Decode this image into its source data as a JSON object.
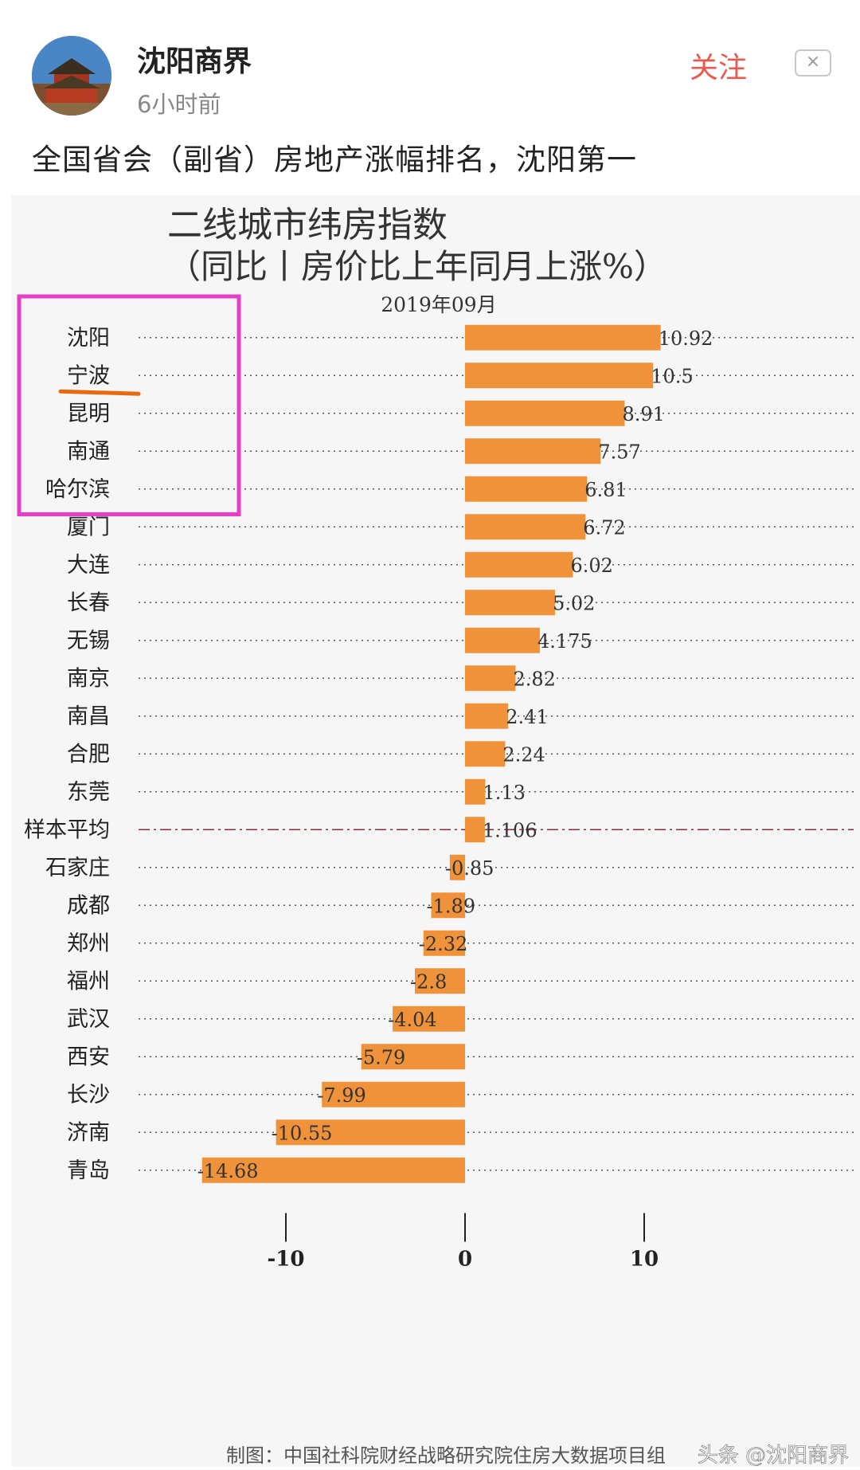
{
  "post": {
    "author": "沈阳商界",
    "time": "6小时前",
    "follow_label": "关注",
    "close_label": "×",
    "headline": "全国省会（副省）房地产涨幅排名，沈阳第一"
  },
  "colors": {
    "bar": "#f0923a",
    "highlight_box": "#e63ec8",
    "underline": "#e86a10",
    "avg_line": "#8a2a3a",
    "follow": "#e85a4f"
  },
  "chart_data": {
    "type": "bar",
    "orientation": "horizontal",
    "title_line1": "二线城市纬房指数",
    "title_line2": "（同比丨房价比上年同月上涨%）",
    "subtitle": "2019年09月",
    "categories": [
      "沈阳",
      "宁波",
      "昆明",
      "南通",
      "哈尔滨",
      "厦门",
      "大连",
      "长春",
      "无锡",
      "南京",
      "南昌",
      "合肥",
      "东莞",
      "样本平均",
      "石家庄",
      "成都",
      "郑州",
      "福州",
      "武汉",
      "西安",
      "长沙",
      "济南",
      "青岛"
    ],
    "values": [
      10.92,
      10.5,
      8.91,
      7.57,
      6.81,
      6.72,
      6.02,
      5.02,
      4.175,
      2.82,
      2.41,
      2.24,
      1.13,
      1.106,
      -0.85,
      -1.89,
      -2.32,
      -2.8,
      -4.04,
      -5.79,
      -7.99,
      -10.55,
      -14.68
    ],
    "value_labels": [
      "10.92",
      "10.5",
      "8.91",
      "7.57",
      "6.81",
      "6.72",
      "6.02",
      "5.02",
      "4.175",
      "2.82",
      "2.41",
      "2.24",
      "1.13",
      "1.106",
      "-0.85",
      "-1.89",
      "-2.32",
      "-2.8",
      "-4.04",
      "-5.79",
      "-7.99",
      "-10.55",
      "-14.68"
    ],
    "xlim": [
      -15.5,
      11.5
    ],
    "xticks": [
      "-10",
      "0",
      "10"
    ],
    "average_category": "样本平均",
    "highlighted_categories": [
      "沈阳",
      "宁波",
      "昆明",
      "南通",
      "哈尔滨"
    ],
    "underlined_category": "宁波",
    "source": "制图：中国社科院财经战略研究院住房大数据项目组",
    "watermark": "头条 @沈阳商界"
  }
}
